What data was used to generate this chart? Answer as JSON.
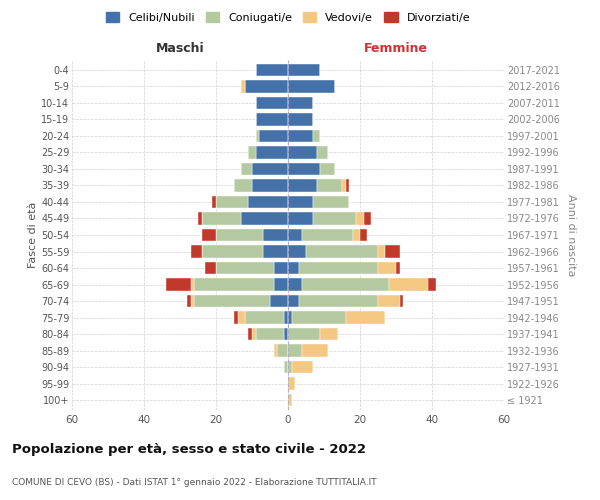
{
  "age_groups": [
    "100+",
    "95-99",
    "90-94",
    "85-89",
    "80-84",
    "75-79",
    "70-74",
    "65-69",
    "60-64",
    "55-59",
    "50-54",
    "45-49",
    "40-44",
    "35-39",
    "30-34",
    "25-29",
    "20-24",
    "15-19",
    "10-14",
    "5-9",
    "0-4"
  ],
  "birth_years": [
    "≤ 1921",
    "1922-1926",
    "1927-1931",
    "1932-1936",
    "1937-1941",
    "1942-1946",
    "1947-1951",
    "1952-1956",
    "1957-1961",
    "1962-1966",
    "1967-1971",
    "1972-1976",
    "1977-1981",
    "1982-1986",
    "1987-1991",
    "1992-1996",
    "1997-2001",
    "2002-2006",
    "2007-2011",
    "2012-2016",
    "2017-2021"
  ],
  "males": {
    "celibi": [
      0,
      0,
      0,
      0,
      1,
      1,
      5,
      4,
      4,
      7,
      7,
      13,
      11,
      10,
      10,
      9,
      8,
      9,
      9,
      12,
      9
    ],
    "coniugati": [
      0,
      0,
      1,
      3,
      8,
      11,
      21,
      22,
      16,
      17,
      13,
      11,
      9,
      5,
      3,
      2,
      1,
      0,
      0,
      0,
      0
    ],
    "vedovi": [
      0,
      0,
      0,
      1,
      1,
      2,
      1,
      1,
      0,
      0,
      0,
      0,
      0,
      0,
      0,
      0,
      0,
      0,
      0,
      1,
      0
    ],
    "divorziati": [
      0,
      0,
      0,
      0,
      1,
      1,
      1,
      7,
      3,
      3,
      4,
      1,
      1,
      0,
      0,
      0,
      0,
      0,
      0,
      0,
      0
    ]
  },
  "females": {
    "nubili": [
      0,
      0,
      0,
      0,
      0,
      1,
      3,
      4,
      3,
      5,
      4,
      7,
      7,
      8,
      9,
      8,
      7,
      7,
      7,
      13,
      9
    ],
    "coniugate": [
      0,
      0,
      1,
      4,
      9,
      15,
      22,
      24,
      22,
      20,
      14,
      12,
      10,
      7,
      4,
      3,
      2,
      0,
      0,
      0,
      0
    ],
    "vedove": [
      1,
      2,
      6,
      7,
      5,
      11,
      6,
      11,
      5,
      2,
      2,
      2,
      0,
      1,
      0,
      0,
      0,
      0,
      0,
      0,
      0
    ],
    "divorziate": [
      0,
      0,
      0,
      0,
      0,
      0,
      1,
      2,
      1,
      4,
      2,
      2,
      0,
      1,
      0,
      0,
      0,
      0,
      0,
      0,
      0
    ]
  },
  "colors": {
    "celibi": "#4472a8",
    "coniugati": "#b5c9a0",
    "vedovi": "#f5c882",
    "divorziati": "#c0392b"
  },
  "xlim": 60,
  "title": "Popolazione per età, sesso e stato civile - 2022",
  "subtitle": "COMUNE DI CEVO (BS) - Dati ISTAT 1° gennaio 2022 - Elaborazione TUTTITALIA.IT",
  "ylabel_left": "Fasce di età",
  "ylabel_right": "Anni di nascita",
  "legend_labels": [
    "Celibi/Nubili",
    "Coniugati/e",
    "Vedovi/e",
    "Divorziati/e"
  ],
  "maschi_label": "Maschi",
  "femmine_label": "Femmine"
}
